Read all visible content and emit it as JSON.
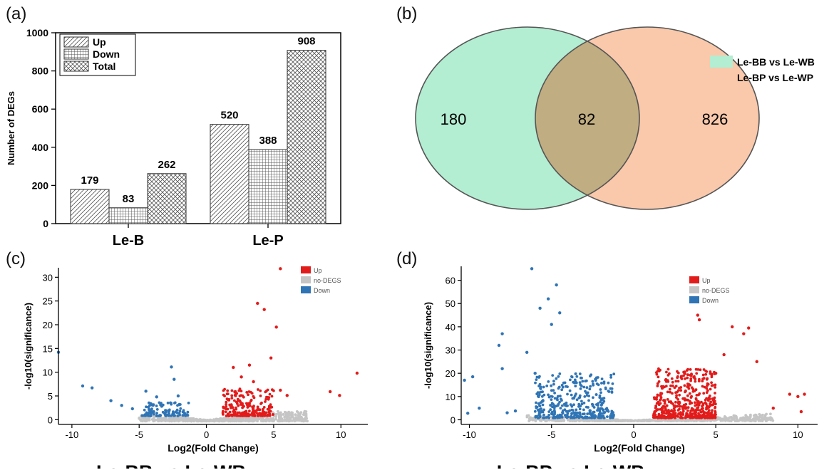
{
  "panel_labels": {
    "a": "(a)",
    "b": "(b)",
    "c": "(c)",
    "d": "(d)"
  },
  "chart_data": [
    {
      "type": "bar",
      "categories": [
        "Le-B",
        "Le-P"
      ],
      "series": [
        {
          "name": "Up",
          "values": [
            179,
            520
          ],
          "pattern": "diagonal"
        },
        {
          "name": "Down",
          "values": [
            83,
            388
          ],
          "pattern": "grid"
        },
        {
          "name": "Total",
          "values": [
            262,
            908
          ],
          "pattern": "crosshatch"
        }
      ],
      "value_labels": [
        "179",
        "83",
        "262",
        "520",
        "388",
        "908"
      ],
      "ylabel": "Number of DEGs",
      "ylim": [
        0,
        1000
      ],
      "yticks": [
        "0",
        "200",
        "400",
        "600",
        "800",
        "1000"
      ],
      "legend_position": "top-left"
    },
    {
      "type": "venn",
      "sets": [
        {
          "name": "Le-BB vs Le-WB",
          "only": 180,
          "color": "#b3edd2"
        },
        {
          "name": "Le-BP vs Le-WP",
          "only": 826,
          "color": "#fac8ab"
        }
      ],
      "values": {
        "left": "180",
        "overlap": "82",
        "right": "826"
      },
      "overlap_color": "#c0ad82",
      "legend_position": "right"
    },
    {
      "type": "scatter",
      "title": "Le-BB vs Le-WB",
      "xlabel": "Log2(Fold Change)",
      "ylabel": "-log10(significance)",
      "xlim": [
        -11,
        12
      ],
      "ylim": [
        -1,
        32
      ],
      "xticks": [
        "-10",
        "-5",
        "0",
        "5",
        "10"
      ],
      "yticks": [
        "0",
        "5",
        "10",
        "15",
        "20",
        "25",
        "30"
      ],
      "legend": [
        {
          "name": "Up",
          "color": "#e21b1b"
        },
        {
          "name": "no-DEGS",
          "color": "#c5c5c5"
        },
        {
          "name": "Down",
          "color": "#2f74b5"
        }
      ],
      "up_points": [
        [
          5.5,
          31.8
        ],
        [
          3.8,
          24.5
        ],
        [
          4.3,
          23.2
        ],
        [
          5.2,
          19.5
        ],
        [
          11.2,
          9.8
        ],
        [
          9.2,
          5.9
        ],
        [
          9.9,
          5.1
        ],
        [
          6.0,
          5.1
        ],
        [
          5.5,
          6.2
        ],
        [
          3.2,
          11.5
        ],
        [
          2.6,
          9.0
        ],
        [
          4.8,
          13.0
        ],
        [
          3.5,
          8.0
        ],
        [
          2.0,
          11.0
        ]
      ],
      "down_points": [
        [
          -9.2,
          7.1
        ],
        [
          -8.5,
          6.7
        ],
        [
          -2.6,
          11.1
        ],
        [
          -2.4,
          8.5
        ],
        [
          -11.0,
          14.2
        ],
        [
          -4.5,
          6.0
        ],
        [
          -7.1,
          4.0
        ],
        [
          -6.3,
          3.0
        ],
        [
          -5.5,
          2.3
        ],
        [
          -3.7,
          4.8
        ],
        [
          -2.1,
          5.0
        ]
      ],
      "up_cluster": {
        "x": [
          1.2,
          5.0
        ],
        "y": [
          0.8,
          6.5
        ],
        "count": 230
      },
      "down_cluster": {
        "x": [
          -4.8,
          -1.3
        ],
        "y": [
          0.8,
          3.6
        ],
        "count": 110
      },
      "gray_cluster": {
        "x": [
          -5.0,
          7.5
        ],
        "y": [
          -0.3,
          1.8
        ],
        "count": 650
      }
    },
    {
      "type": "scatter",
      "title": "Le-BP vs Le-WP",
      "xlabel": "Log2(Fold Change)",
      "ylabel": "-log10(significance)",
      "xlim": [
        -10.5,
        11.2
      ],
      "ylim": [
        -2,
        66
      ],
      "xticks": [
        "-10",
        "-5",
        "0",
        "5",
        "10"
      ],
      "yticks": [
        "0",
        "10",
        "20",
        "30",
        "40",
        "50",
        "60"
      ],
      "legend": [
        {
          "name": "Up",
          "color": "#e21b1b"
        },
        {
          "name": "no-DEGS",
          "color": "#c5c5c5"
        },
        {
          "name": "Down",
          "color": "#2f74b5"
        }
      ],
      "up_points": [
        [
          3.5,
          52.0
        ],
        [
          6.0,
          40.0
        ],
        [
          7.0,
          39.5
        ],
        [
          6.7,
          37.0
        ],
        [
          4.0,
          43.0
        ],
        [
          3.9,
          45.0
        ],
        [
          7.5,
          25.0
        ],
        [
          9.5,
          11.0
        ],
        [
          10.0,
          10.0
        ],
        [
          10.4,
          11.0
        ],
        [
          10.2,
          3.5
        ],
        [
          8.5,
          5.0
        ],
        [
          5.5,
          28.0
        ],
        [
          5.0,
          20.0
        ]
      ],
      "down_points": [
        [
          -6.2,
          65.0
        ],
        [
          -4.7,
          58.0
        ],
        [
          -5.2,
          52.0
        ],
        [
          -5.7,
          48.0
        ],
        [
          -4.5,
          46.0
        ],
        [
          -5.0,
          41.0
        ],
        [
          -8.0,
          37.0
        ],
        [
          -8.2,
          32.0
        ],
        [
          -6.5,
          29.0
        ],
        [
          -8.0,
          22.0
        ],
        [
          -9.8,
          18.5
        ],
        [
          -10.3,
          17.0
        ],
        [
          -6.0,
          20.0
        ],
        [
          -9.4,
          5.0
        ],
        [
          -10.1,
          2.8
        ],
        [
          -7.2,
          3.8
        ],
        [
          -7.7,
          3.0
        ]
      ],
      "up_cluster": {
        "x": [
          1.2,
          5.0
        ],
        "y": [
          0.8,
          22.0
        ],
        "count": 480
      },
      "down_cluster": {
        "x": [
          -6.0,
          -1.2
        ],
        "y": [
          0.8,
          20.0
        ],
        "count": 380
      },
      "gray_cluster": {
        "x": [
          -6.5,
          8.5
        ],
        "y": [
          -0.5,
          3.0
        ],
        "count": 700
      }
    }
  ]
}
